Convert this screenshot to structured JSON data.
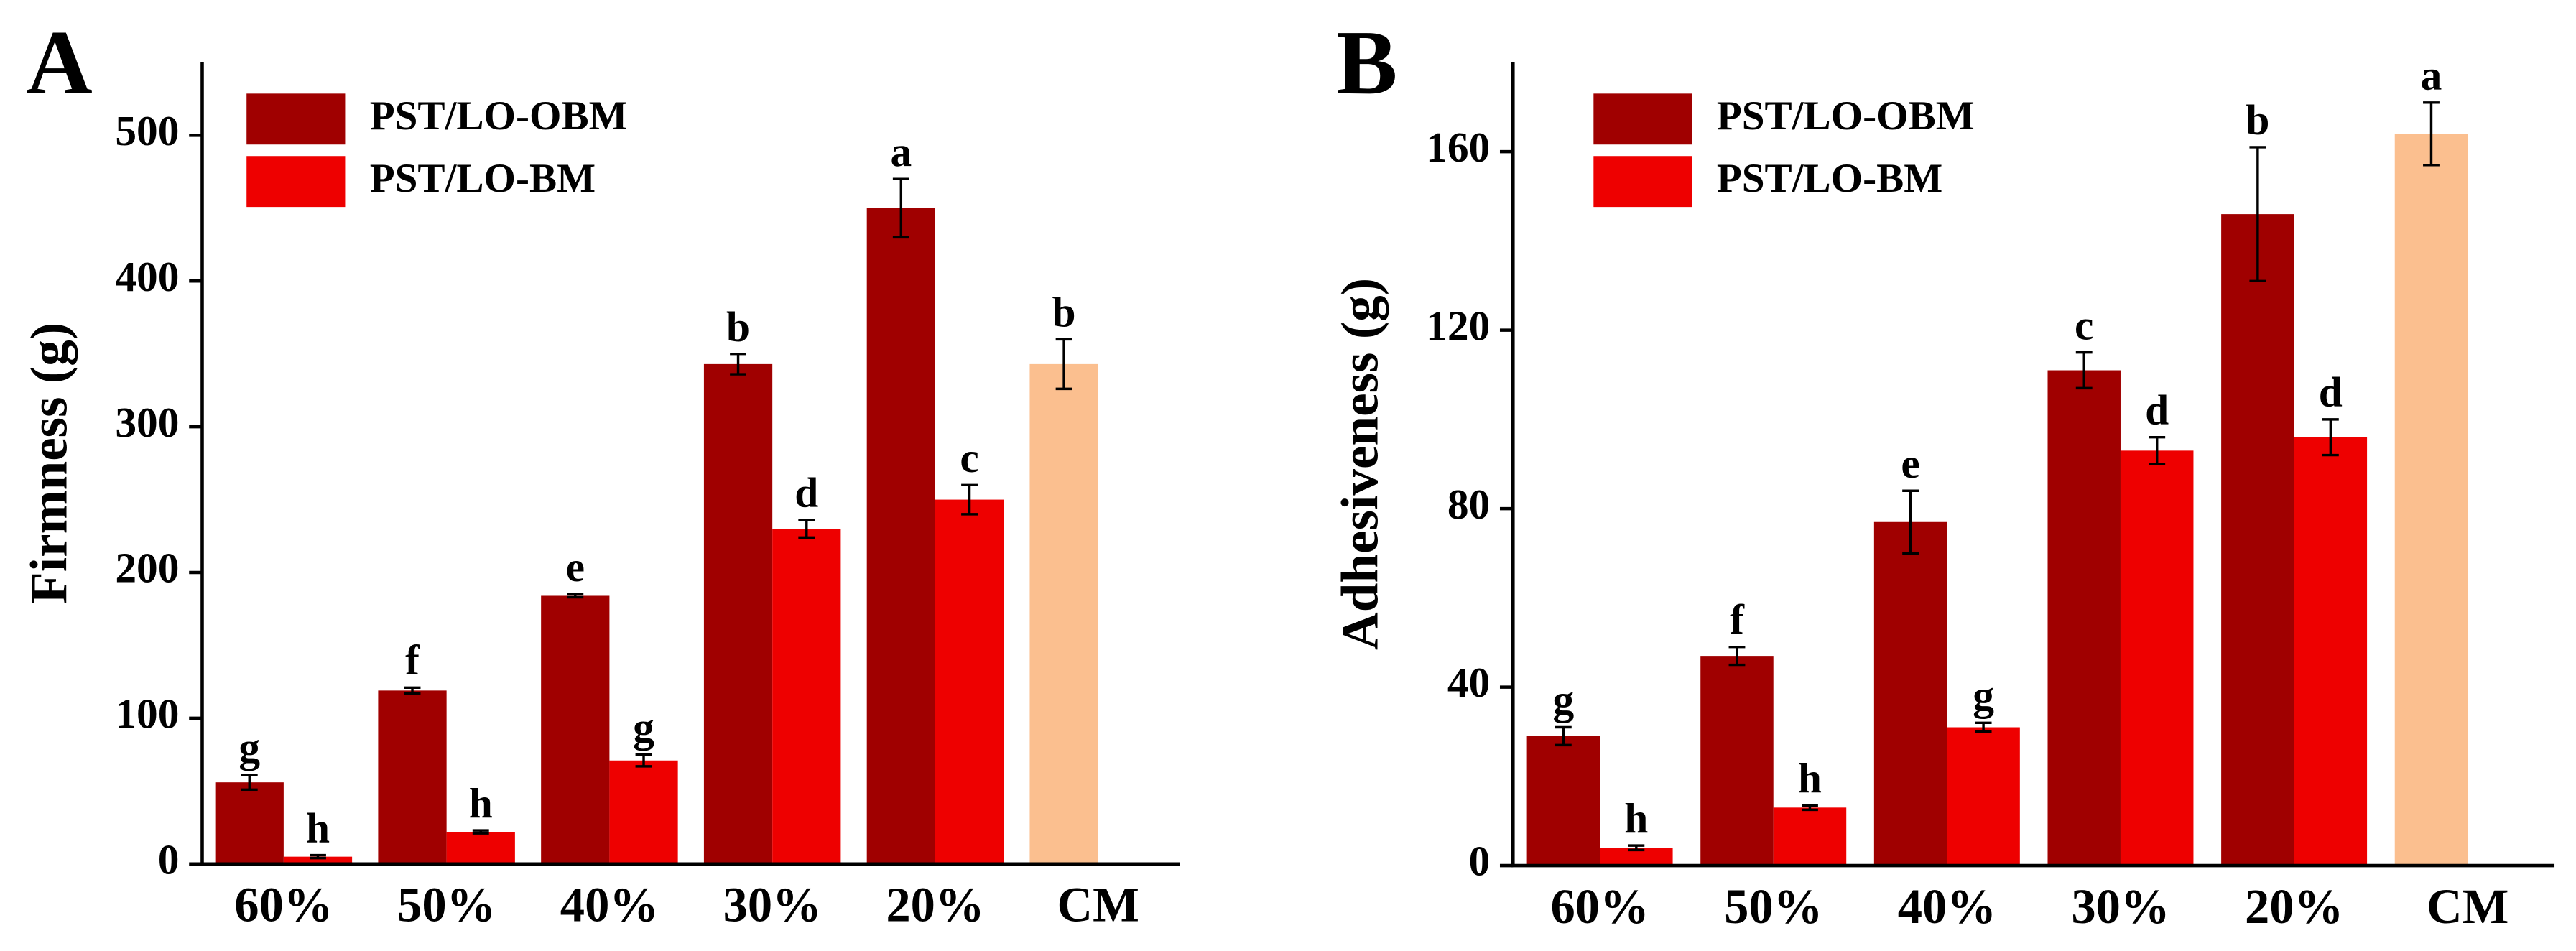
{
  "chart_data": [
    {
      "type": "bar",
      "panel": "A",
      "ylabel": "Firmness (g)",
      "categories": [
        "60%",
        "50%",
        "40%",
        "30%",
        "20%",
        "CM"
      ],
      "ylim": [
        0,
        550
      ],
      "yticks": [
        0,
        100,
        200,
        300,
        400,
        500
      ],
      "series": [
        {
          "name": "PST/LO-OBM",
          "color": "#a00000",
          "values": [
            56,
            119,
            184,
            343,
            450,
            null
          ],
          "errors": [
            5,
            2,
            1,
            7,
            20,
            null
          ],
          "labels": [
            "g",
            "f",
            "e",
            "b",
            "a",
            null
          ]
        },
        {
          "name": "PST/LO-BM",
          "color": "#ee0000",
          "values": [
            5,
            22,
            71,
            230,
            250,
            null
          ],
          "errors": [
            1,
            1,
            4,
            6,
            10,
            null
          ],
          "labels": [
            "h",
            "h",
            "g",
            "d",
            "c",
            null
          ]
        },
        {
          "color": "#fbbf8f",
          "values": [
            null,
            null,
            null,
            null,
            null,
            343
          ],
          "errors": [
            null,
            null,
            null,
            null,
            null,
            17
          ],
          "labels": [
            null,
            null,
            null,
            null,
            null,
            "b"
          ]
        }
      ]
    },
    {
      "type": "bar",
      "panel": "B",
      "ylabel": "Adhesiveness (g)",
      "categories": [
        "60%",
        "50%",
        "40%",
        "30%",
        "20%",
        "CM"
      ],
      "ylim": [
        0,
        180
      ],
      "yticks": [
        0,
        40,
        80,
        120,
        160
      ],
      "series": [
        {
          "name": "PST/LO-OBM",
          "color": "#a00000",
          "values": [
            29,
            47,
            77,
            111,
            146,
            null
          ],
          "errors": [
            2,
            2,
            7,
            4,
            15,
            null
          ],
          "labels": [
            "g",
            "f",
            "e",
            "c",
            "b",
            null
          ]
        },
        {
          "name": "PST/LO-BM",
          "color": "#ee0000",
          "values": [
            4,
            13,
            31,
            93,
            96,
            null
          ],
          "errors": [
            0.5,
            0.5,
            1,
            3,
            4,
            null
          ],
          "labels": [
            "h",
            "h",
            "g",
            "d",
            "d",
            null
          ]
        },
        {
          "color": "#fbbf8f",
          "values": [
            null,
            null,
            null,
            null,
            null,
            164
          ],
          "errors": [
            null,
            null,
            null,
            null,
            null,
            7
          ],
          "labels": [
            null,
            null,
            null,
            null,
            null,
            "a"
          ]
        }
      ]
    }
  ]
}
